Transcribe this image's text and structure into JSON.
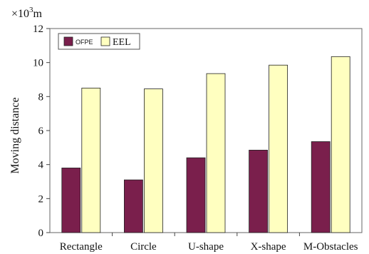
{
  "chart_data": {
    "type": "bar",
    "unit_prefix": "×10",
    "unit_exponent": "3",
    "unit_suffix": "m",
    "ylabel": "Moving distance",
    "ylim": [
      0,
      12
    ],
    "yticks": [
      "0",
      "2",
      "4",
      "6",
      "8",
      "10",
      "12"
    ],
    "categories": [
      "Rectangle",
      "Circle",
      "U-shape",
      "X-shape",
      "M-Obstacles"
    ],
    "series": [
      {
        "name": "OFPE",
        "color": "#7a1f4c",
        "values": [
          3.8,
          3.1,
          4.4,
          4.85,
          5.35
        ]
      },
      {
        "name": "EEL",
        "color": "#ffffc0",
        "values": [
          8.5,
          8.45,
          9.35,
          9.85,
          10.35
        ]
      }
    ],
    "legend": "top-left",
    "grid": false
  }
}
